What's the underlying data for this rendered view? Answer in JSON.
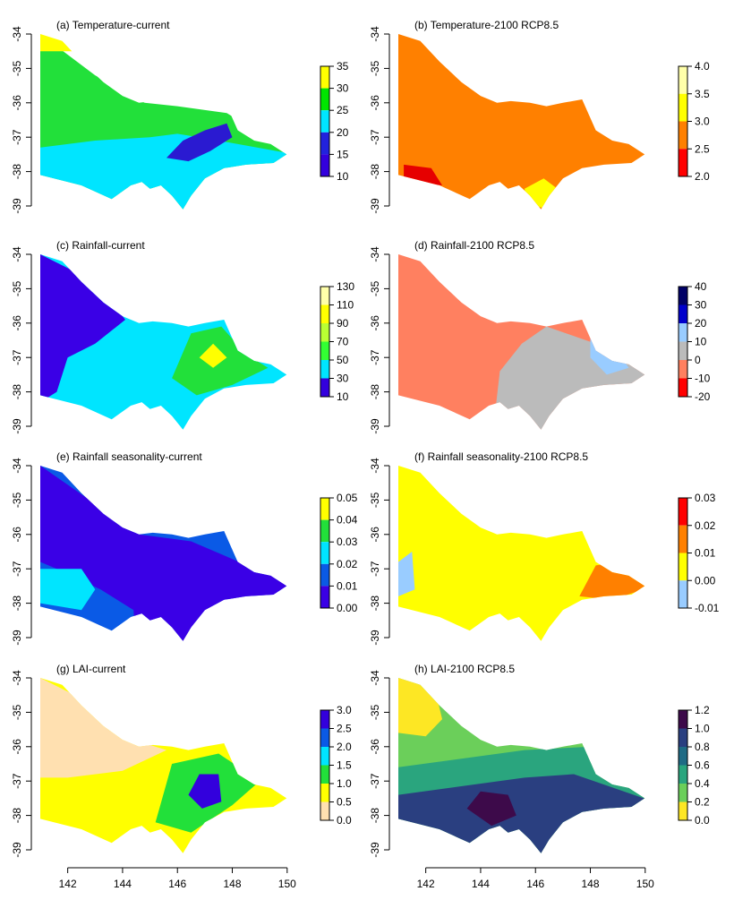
{
  "figure": {
    "x_ticks": [
      "142",
      "144",
      "146",
      "148",
      "150"
    ],
    "y_ticks": [
      "-34",
      "-35",
      "-36",
      "-37",
      "-38",
      "-39"
    ],
    "panels": [
      {
        "id": "a",
        "title": "(a) Temperature-current",
        "legend": {
          "labels": [
            "35",
            "30",
            "25",
            "20",
            "15",
            "10"
          ],
          "colors": [
            "#ffff00",
            "#00e600",
            "#00e6ff",
            "#2222dd",
            "#3300dd"
          ]
        },
        "zone_colors": {
          "north": "#22e03a",
          "south": "#00e5ff",
          "east": "#2a1ad1",
          "top": "#ffff00"
        }
      },
      {
        "id": "b",
        "title": "(b) Temperature-2100 RCP8.5",
        "legend": {
          "labels": [
            "4.0",
            "3.5",
            "3.0",
            "2.5",
            "2.0"
          ],
          "colors": [
            "#ffffaa",
            "#ffff00",
            "#ff8000",
            "#ff0000"
          ]
        },
        "zone_colors": {
          "main": "#ff8000",
          "spot1": "#ffff00",
          "spot2": "#e60000"
        }
      },
      {
        "id": "c",
        "title": "(c) Rainfall-current",
        "legend": {
          "labels": [
            "130",
            "110",
            "90",
            "70",
            "50",
            "30",
            "10"
          ],
          "colors": [
            "#ffffaa",
            "#ffff00",
            "#b9ff33",
            "#33ff33",
            "#00e5ff",
            "#3300dd"
          ]
        },
        "zone_colors": {
          "west": "#3a00e6",
          "mid": "#00e5ff",
          "east": "#22e03a",
          "peak": "#ffff00"
        }
      },
      {
        "id": "d",
        "title": "(d) Rainfall-2100 RCP8.5",
        "legend": {
          "labels": [
            "40",
            "30",
            "20",
            "10",
            "0",
            "-10",
            "-20"
          ],
          "colors": [
            "#000066",
            "#0000cc",
            "#99ccff",
            "#bbbbbb",
            "#ff8060",
            "#ff0000"
          ]
        },
        "zone_colors": {
          "west": "#ff8060",
          "east": "#bbbbbb",
          "blue": "#99ccff"
        }
      },
      {
        "id": "e",
        "title": "(e) Rainfall seasonality-current",
        "legend": {
          "labels": [
            "0.05",
            "0.04",
            "0.03",
            "0.02",
            "0.01",
            "0.00"
          ],
          "colors": [
            "#ffff00",
            "#22e03a",
            "#00e5ff",
            "#0a5ae6",
            "#3a00e6"
          ]
        },
        "zone_colors": {
          "main": "#3a00e6",
          "band": "#0a5ae6",
          "cyan": "#00e5ff"
        }
      },
      {
        "id": "f",
        "title": "(f) Rainfall seasonality-2100 RCP8.5",
        "legend": {
          "labels": [
            "0.03",
            "0.02",
            "0.01",
            "0.00",
            "-0.01"
          ],
          "colors": [
            "#ff0000",
            "#ff8000",
            "#ffff00",
            "#99ccff"
          ]
        },
        "zone_colors": {
          "main": "#ffff00",
          "orange": "#ff8000",
          "blue": "#99ccff"
        }
      },
      {
        "id": "g",
        "title": "(g) LAI-current",
        "legend": {
          "labels": [
            "3.0",
            "2.5",
            "2.0",
            "1.5",
            "1.0",
            "0.5",
            "0.0"
          ],
          "colors": [
            "#3300dd",
            "#0a5ae6",
            "#00e5ff",
            "#22e03a",
            "#ffff00",
            "#ffe0b0"
          ]
        },
        "zone_colors": {
          "nw": "#ffe0b0",
          "mid": "#ffff00",
          "green": "#22e03a",
          "blue": "#3300dd"
        }
      },
      {
        "id": "h",
        "title": "(h) LAI-2100 RCP8.5",
        "legend": {
          "labels": [
            "1.2",
            "1.0",
            "0.8",
            "0.6",
            "0.4",
            "0.2",
            "0.0"
          ],
          "colors": [
            "#3d0a4a",
            "#2a3f80",
            "#1f6b85",
            "#2aa57e",
            "#6bcf5a",
            "#fde724"
          ]
        },
        "zone_colors": {
          "nw": "#fde724",
          "green": "#6bcf5a",
          "teal": "#2aa57e",
          "blue": "#2a3f80",
          "dark": "#3d0a4a"
        }
      }
    ]
  }
}
